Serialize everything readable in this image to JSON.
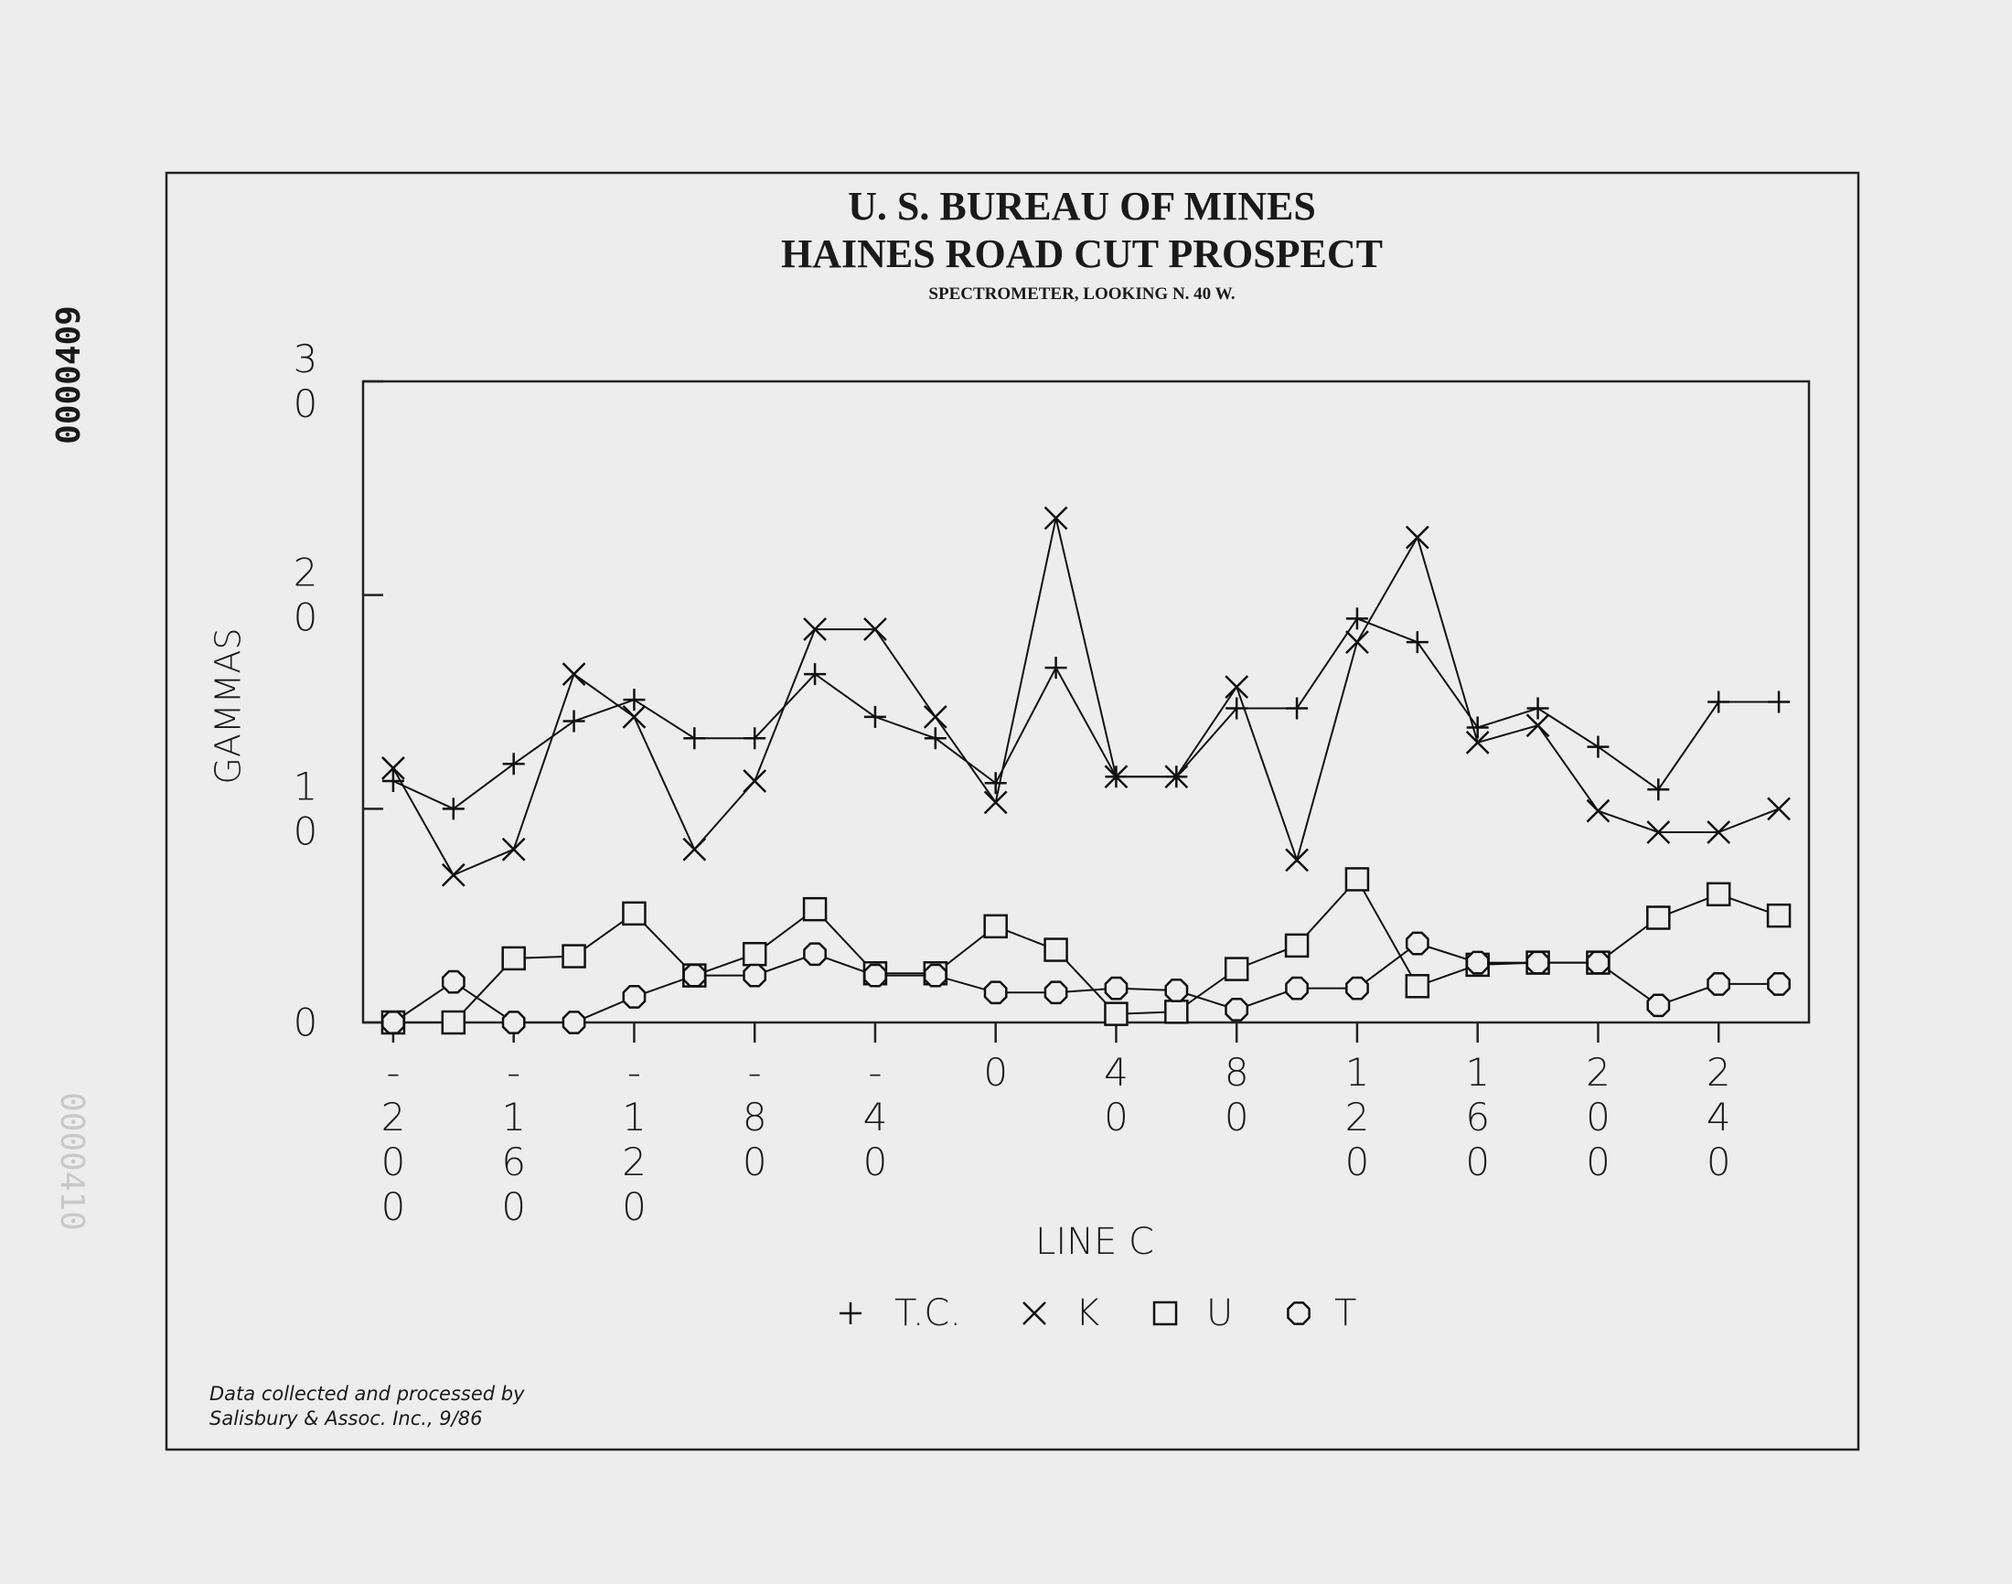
{
  "stamp": "0000409",
  "stamp_bleed": "0000410",
  "chart_data": {
    "type": "line",
    "title": "U. S. BUREAU OF MINES",
    "subtitle": "HAINES ROAD CUT PROSPECT",
    "caption": "SPECTROMETER, LOOKING N. 40 W.",
    "y_label": "GAMMAS",
    "x_label": "LINE C",
    "footnote": [
      "Data collected and processed by",
      "Salisbury & Assoc. Inc., 9/86"
    ],
    "x": [
      -200,
      -180,
      -160,
      -140,
      -120,
      -100,
      -80,
      -60,
      -40,
      -20,
      0,
      20,
      40,
      60,
      80,
      100,
      120,
      140,
      160,
      180,
      200,
      220,
      240,
      260
    ],
    "xlim": [
      -210,
      270
    ],
    "xticks": [
      -200,
      -160,
      -120,
      -80,
      -40,
      0,
      40,
      80,
      120,
      160,
      200,
      240
    ],
    "ylim": [
      0,
      30
    ],
    "yticks": [
      0,
      10,
      20,
      30
    ],
    "series": [
      {
        "name": "T.C.",
        "marker": "plus",
        "color": "#111111",
        "values": [
          11.3,
          10.0,
          12.1,
          14.1,
          15.1,
          13.3,
          13.3,
          16.3,
          14.3,
          13.3,
          11.2,
          16.6,
          11.5,
          11.5,
          14.7,
          14.7,
          18.9,
          17.8,
          13.8,
          14.7,
          12.9,
          10.9,
          15.0,
          15.0
        ]
      },
      {
        "name": "K",
        "marker": "cross",
        "color": "#111111",
        "values": [
          11.9,
          6.9,
          8.1,
          16.3,
          14.3,
          8.1,
          11.3,
          18.4,
          18.4,
          14.3,
          10.3,
          23.6,
          11.5,
          11.5,
          15.7,
          7.6,
          17.8,
          22.7,
          13.1,
          13.9,
          9.9,
          8.9,
          8.9,
          10.0
        ]
      },
      {
        "name": "U",
        "marker": "square",
        "color": "#111111",
        "values": [
          0,
          0,
          3.0,
          3.1,
          5.1,
          2.2,
          3.2,
          5.3,
          2.3,
          2.3,
          4.5,
          3.4,
          0.4,
          0.5,
          2.5,
          3.6,
          6.7,
          1.7,
          2.7,
          2.8,
          2.8,
          4.9,
          6.0,
          5.0
        ]
      },
      {
        "name": "T",
        "marker": "octagon",
        "color": "#111111",
        "values": [
          0,
          1.9,
          0,
          0,
          1.2,
          2.2,
          2.2,
          3.2,
          2.2,
          2.2,
          1.4,
          1.4,
          1.6,
          1.5,
          0.6,
          1.6,
          1.6,
          3.7,
          2.8,
          2.8,
          2.8,
          0.8,
          1.8,
          1.8
        ]
      }
    ]
  }
}
